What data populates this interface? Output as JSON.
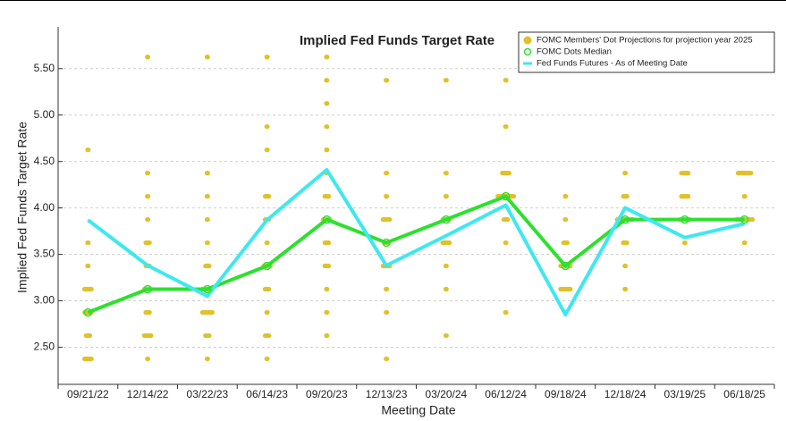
{
  "chart_data": {
    "type": "line",
    "title": "Implied Fed Funds Target Rate",
    "x_label": "Meeting Date",
    "y_label": "Implied Fed Funds Target Rate",
    "categories": [
      "09/21/22",
      "12/14/22",
      "03/22/23",
      "06/14/23",
      "09/20/23",
      "12/13/23",
      "03/20/24",
      "06/12/24",
      "09/18/24",
      "12/18/24",
      "03/19/25",
      "06/18/25"
    ],
    "ylim": [
      2.1,
      5.95
    ],
    "yticks": [
      {
        "value": 2.5,
        "label": "2.50"
      },
      {
        "value": 3,
        "label": "3.00"
      },
      {
        "value": 3.5,
        "label": "3.50"
      },
      {
        "value": 4,
        "label": "4.00"
      },
      {
        "value": 4.5,
        "label": "4.50"
      },
      {
        "value": 5,
        "label": "5.00"
      },
      {
        "value": 5.5,
        "label": "5.50"
      }
    ],
    "grid": true,
    "legend": "top-right",
    "dots": {
      "name": "FOMC Members' Dot Projections for projection year 2025",
      "color": "#e0c12a",
      "levels": [
        [
          4.625,
          3.625,
          3.375,
          3.125,
          2.875,
          2.625,
          2.375
        ],
        [
          5.625,
          4.375,
          4.125,
          3.875,
          3.625,
          3.375,
          3.125,
          2.875,
          2.625,
          2.375
        ],
        [
          5.625,
          4.375,
          4.125,
          3.875,
          3.625,
          3.375,
          3.125,
          2.875,
          2.625,
          2.375
        ],
        [
          5.625,
          4.875,
          4.625,
          4.125,
          3.875,
          3.625,
          3.375,
          3.125,
          2.875,
          2.625,
          2.375
        ],
        [
          5.625,
          5.375,
          5.125,
          4.875,
          4.625,
          4.375,
          4.125,
          3.875,
          3.625,
          3.375,
          3.125,
          2.875,
          2.625
        ],
        [
          5.375,
          4.375,
          4.125,
          3.875,
          3.625,
          3.375,
          3.125,
          2.875,
          2.375
        ],
        [
          5.375,
          4.375,
          4.125,
          3.875,
          3.625,
          3.375,
          3.125,
          2.625
        ],
        [
          5.375,
          4.875,
          4.375,
          4.125,
          3.875,
          3.625,
          2.875
        ],
        [
          4.125,
          3.875,
          3.625,
          3.375,
          3.125,
          2.875
        ],
        [
          4.375,
          4.125,
          3.875,
          3.625,
          3.375,
          3.125
        ],
        [
          4.375,
          4.125,
          3.875,
          3.625
        ],
        [
          4.375,
          4.125,
          3.875,
          3.625
        ]
      ],
      "counts": [
        [
          1,
          1,
          1,
          3,
          3,
          2,
          3
        ],
        [
          1,
          1,
          1,
          1,
          2,
          2,
          3,
          2,
          3,
          1
        ],
        [
          1,
          1,
          1,
          1,
          1,
          2,
          4,
          4,
          2,
          1
        ],
        [
          1,
          1,
          1,
          2,
          2,
          1,
          3,
          2,
          1,
          2,
          1
        ],
        [
          1,
          1,
          1,
          1,
          1,
          1,
          2,
          3,
          2,
          2,
          1,
          1,
          1
        ],
        [
          1,
          1,
          1,
          3,
          2,
          3,
          1,
          1,
          1
        ],
        [
          1,
          1,
          1,
          3,
          3,
          1,
          1,
          1
        ],
        [
          1,
          1,
          3,
          6,
          2,
          1,
          1
        ],
        [
          1,
          1,
          2,
          4,
          4,
          1
        ],
        [
          1,
          2,
          6,
          2,
          1,
          1
        ],
        [
          3,
          3,
          4,
          1
        ],
        [
          5,
          1,
          6,
          1
        ]
      ]
    },
    "series": [
      {
        "name": "FOMC Dots Median",
        "color": "#2ee02e",
        "values": [
          2.875,
          3.125,
          3.125,
          3.375,
          3.875,
          3.625,
          3.875,
          4.125,
          3.375,
          3.875,
          3.875,
          3.875
        ]
      },
      {
        "name": "Fed Funds Futures - As of Meeting Date",
        "color": "#3ee8ef",
        "values": [
          3.87,
          3.38,
          3.05,
          3.87,
          4.41,
          3.38,
          3.7,
          4.03,
          2.85,
          4.0,
          3.68,
          3.83
        ]
      }
    ]
  }
}
